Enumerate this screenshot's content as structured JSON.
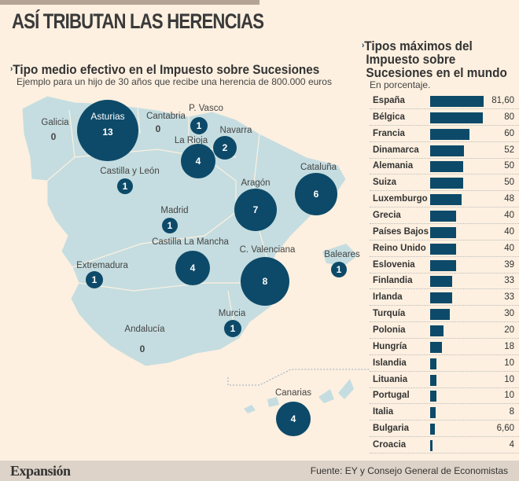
{
  "title": "ASÍ TRIBUTAN LAS HERENCIAS",
  "map": {
    "title": "Tipo medio efectivo en el Impuesto sobre Sucesiones",
    "subtitle": "Ejemplo para un hijo de 30 años que recibe una herencia de 800.000 euros",
    "regions": [
      {
        "name": "Galicia",
        "value": "0",
        "circle": false
      },
      {
        "name": "Asturias",
        "value": "13",
        "circle": true
      },
      {
        "name": "Cantabria",
        "value": "0",
        "circle": false
      },
      {
        "name": "P. Vasco",
        "value": "1",
        "circle": true
      },
      {
        "name": "Navarra",
        "value": "2",
        "circle": true
      },
      {
        "name": "La Rioja",
        "value": "4",
        "circle": true
      },
      {
        "name": "Castilla y León",
        "value": "1",
        "circle": true
      },
      {
        "name": "Cataluña",
        "value": "6",
        "circle": true
      },
      {
        "name": "Aragón",
        "value": "7",
        "circle": true
      },
      {
        "name": "Madrid",
        "value": "1",
        "circle": true
      },
      {
        "name": "Castilla La Mancha",
        "value": "4",
        "circle": true
      },
      {
        "name": "C. Valenciana",
        "value": "8",
        "circle": true
      },
      {
        "name": "Baleares",
        "value": "1",
        "circle": true
      },
      {
        "name": "Extremadura",
        "value": "1",
        "circle": true
      },
      {
        "name": "Murcia",
        "value": "1",
        "circle": true
      },
      {
        "name": "Andalucía",
        "value": "0",
        "circle": false
      },
      {
        "name": "Canarias",
        "value": "4",
        "circle": true
      }
    ],
    "colors": {
      "land": "#c5dde0",
      "circle": "#0d4a69"
    }
  },
  "world": {
    "title_lines": [
      "Tipos máximos del",
      "Impuesto sobre",
      "Sucesiones en el mundo"
    ],
    "subtitle": "En porcentaje.",
    "max": 81.6,
    "rows": [
      {
        "country": "España",
        "label": "81,60",
        "value": 81.6
      },
      {
        "country": "Bélgica",
        "label": "80",
        "value": 80
      },
      {
        "country": "Francia",
        "label": "60",
        "value": 60
      },
      {
        "country": "Dinamarca",
        "label": "52",
        "value": 52
      },
      {
        "country": "Alemania",
        "label": "50",
        "value": 50
      },
      {
        "country": "Suiza",
        "label": "50",
        "value": 50
      },
      {
        "country": "Luxemburgo",
        "label": "48",
        "value": 48
      },
      {
        "country": "Grecia",
        "label": "40",
        "value": 40
      },
      {
        "country": "Países Bajos",
        "label": "40",
        "value": 40
      },
      {
        "country": "Reino Unido",
        "label": "40",
        "value": 40
      },
      {
        "country": "Eslovenia",
        "label": "39",
        "value": 39
      },
      {
        "country": "Finlandia",
        "label": "33",
        "value": 33
      },
      {
        "country": "Irlanda",
        "label": "33",
        "value": 33
      },
      {
        "country": "Turquía",
        "label": "30",
        "value": 30
      },
      {
        "country": "Polonia",
        "label": "20",
        "value": 20
      },
      {
        "country": "Hungría",
        "label": "18",
        "value": 18
      },
      {
        "country": "Islandia",
        "label": "10",
        "value": 10
      },
      {
        "country": "Lituania",
        "label": "10",
        "value": 10
      },
      {
        "country": "Portugal",
        "label": "10",
        "value": 10
      },
      {
        "country": "Italia",
        "label": "8",
        "value": 8
      },
      {
        "country": "Bulgaria",
        "label": "6,60",
        "value": 6.6
      },
      {
        "country": "Croacia",
        "label": "4",
        "value": 4
      }
    ]
  },
  "footer": {
    "logo": "Expansión",
    "source": "Fuente: EY y Consejo General de Economistas"
  }
}
